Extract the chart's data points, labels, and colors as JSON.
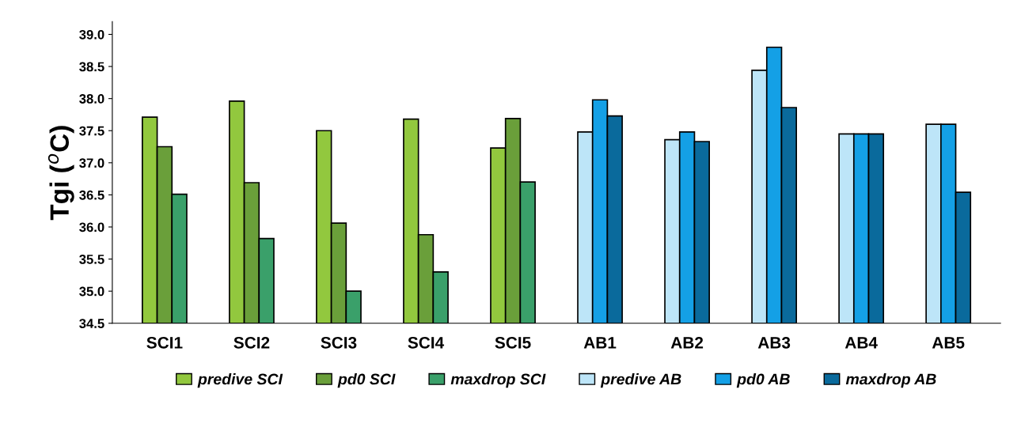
{
  "chart_data": {
    "type": "bar",
    "ylabel": "Tgi ($^{o}$C)",
    "categories": [
      "SCI1",
      "SCI2",
      "SCI3",
      "SCI4",
      "SCI5",
      "AB1",
      "AB2",
      "AB3",
      "AB4",
      "AB5"
    ],
    "series": [
      {
        "name": "predive SCI",
        "color": "#92c83e",
        "values": [
          37.71,
          37.96,
          37.5,
          37.68,
          37.23,
          null,
          null,
          null,
          null,
          null
        ]
      },
      {
        "name": "pd0 SCI",
        "color": "#6a9f3a",
        "values": [
          37.25,
          36.69,
          36.06,
          35.88,
          37.69,
          null,
          null,
          null,
          null,
          null
        ]
      },
      {
        "name": "maxdrop SCI",
        "color": "#3aa06a",
        "values": [
          36.51,
          35.82,
          35.0,
          35.3,
          36.7,
          null,
          null,
          null,
          null,
          null
        ]
      },
      {
        "name": "predive AB",
        "color": "#bde5f8",
        "values": [
          null,
          null,
          null,
          null,
          null,
          37.48,
          37.36,
          38.44,
          37.45,
          37.6
        ]
      },
      {
        "name": "pd0 AB",
        "color": "#14a0e6",
        "values": [
          null,
          null,
          null,
          null,
          null,
          37.98,
          37.48,
          38.8,
          37.45,
          37.6
        ]
      },
      {
        "name": "maxdrop AB",
        "color": "#0a6a9c",
        "values": [
          null,
          null,
          null,
          null,
          null,
          37.73,
          37.33,
          37.86,
          37.45,
          36.54
        ]
      }
    ],
    "ylim": [
      34.5,
      39.2
    ],
    "yticks": [
      {
        "value": 34.5,
        "label": "34.5"
      },
      {
        "value": 35.0,
        "label": "35.0"
      },
      {
        "value": 35.5,
        "label": "35.5"
      },
      {
        "value": 36.0,
        "label": "36.0"
      },
      {
        "value": 36.5,
        "label": "36.5"
      },
      {
        "value": 37.0,
        "label": "37.0"
      },
      {
        "value": 37.5,
        "label": "37.5"
      },
      {
        "value": 38.0,
        "label": "38.0"
      },
      {
        "value": 38.5,
        "label": "38.5"
      },
      {
        "value": 39.0,
        "label": "39.0"
      }
    ],
    "grid": false,
    "legend": "bottom"
  }
}
